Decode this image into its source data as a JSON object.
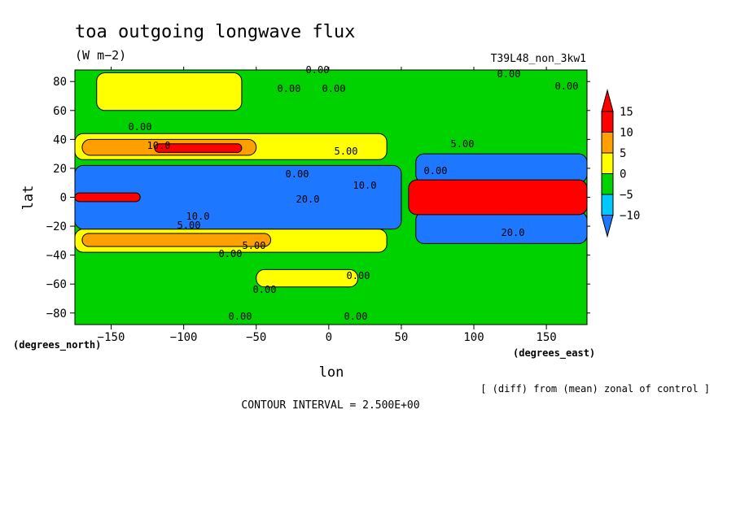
{
  "chart_data": {
    "type": "heatmap",
    "title": "toa outgoing longwave flux",
    "units": "(W m−2)",
    "run_name": "T39L48_non_3kw1",
    "xlabel": "lon",
    "ylabel": "lat",
    "x_unit_label": "(degrees_east)",
    "y_unit_label": "(degrees_north)",
    "xlim": [
      -175,
      178
    ],
    "ylim": [
      -88,
      88
    ],
    "x_ticks": [
      -150,
      -100,
      -50,
      0,
      50,
      100,
      150
    ],
    "x_tick_labels": [
      "−150",
      "−100",
      "−50",
      "0",
      "50",
      "100",
      "150"
    ],
    "y_ticks": [
      80,
      60,
      40,
      20,
      0,
      -20,
      -40,
      -60,
      -80
    ],
    "y_tick_labels": [
      "80",
      "60",
      "40",
      "20",
      "0",
      "−20",
      "−40",
      "−60",
      "−80"
    ],
    "colorbar": {
      "levels": [
        -10,
        -5,
        0,
        5,
        10,
        15
      ],
      "labels": [
        "−10",
        "−5",
        "0",
        "5",
        "10",
        "15"
      ],
      "colors": [
        "#1e78ff",
        "#00c8ff",
        "#00d200",
        "#ffff00",
        "#ffa000",
        "#ff0000"
      ],
      "colors_note": "below -10, -10..-5, -5..0, 0..5, 5..10, above 10"
    },
    "regions": [
      {
        "lon": [
          -175,
          178
        ],
        "lat": [
          -88,
          88
        ],
        "value": -2.5
      },
      {
        "lon": [
          -175,
          40
        ],
        "lat": [
          26,
          44
        ],
        "value": 2.5
      },
      {
        "lon": [
          -170,
          -50
        ],
        "lat": [
          29,
          40
        ],
        "value": 7.5
      },
      {
        "lon": [
          -120,
          -60
        ],
        "lat": [
          31,
          37
        ],
        "value": 12.5
      },
      {
        "lon": [
          -175,
          40
        ],
        "lat": [
          -38,
          -22
        ],
        "value": 2.5
      },
      {
        "lon": [
          -170,
          -40
        ],
        "lat": [
          -34,
          -25
        ],
        "value": 7.5
      },
      {
        "lon": [
          -175,
          50
        ],
        "lat": [
          -22,
          22
        ],
        "value": -12.5
      },
      {
        "lon": [
          -175,
          -130
        ],
        "lat": [
          -3,
          3
        ],
        "value": 15
      },
      {
        "lon": [
          60,
          178
        ],
        "lat": [
          10,
          30
        ],
        "value": -12.5
      },
      {
        "lon": [
          60,
          178
        ],
        "lat": [
          -32,
          -10
        ],
        "value": -12.5
      },
      {
        "lon": [
          55,
          178
        ],
        "lat": [
          -12,
          12
        ],
        "value": 15
      },
      {
        "lon": [
          -160,
          -60
        ],
        "lat": [
          60,
          86
        ],
        "value": 2.5
      },
      {
        "lon": [
          -50,
          20
        ],
        "lat": [
          -62,
          -50
        ],
        "value": 2.5
      }
    ],
    "contour_labels": [
      "0.00",
      "0.00",
      "0.00",
      "0.00",
      "0.00",
      "0.00",
      "0.00",
      "0.00",
      "0.00",
      "0.00",
      "0.00",
      "0.00",
      "0.00",
      "5.00",
      "5.00",
      "5.00",
      "5.00",
      "10.0",
      "10.0",
      "10.0",
      "20.0",
      "20.0"
    ]
  },
  "footer": {
    "contour_interval": "CONTOUR INTERVAL = 2.500E+00",
    "note": "[ (diff) from (mean) zonal of control ]"
  }
}
